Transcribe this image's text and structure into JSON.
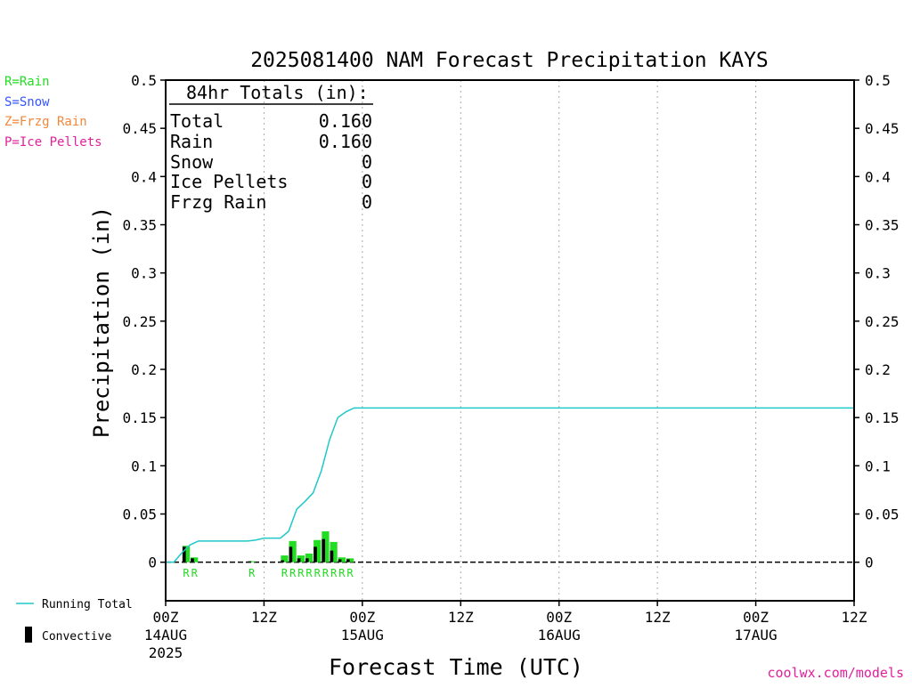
{
  "title": "2025081400 NAM Forecast Precipitation KAYS",
  "legend": [
    {
      "text": "R=Rain",
      "color": "#22dd22"
    },
    {
      "text": "S=Snow",
      "color": "#3355ff"
    },
    {
      "text": "Z=Frzg Rain",
      "color": "#f0883c"
    },
    {
      "text": "P=Ice Pellets",
      "color": "#e0219b"
    }
  ],
  "totals": {
    "header": "84hr Totals (in):",
    "rows": [
      {
        "label": "Total",
        "value": "0.160"
      },
      {
        "label": "Rain",
        "value": "0.160"
      },
      {
        "label": "Snow",
        "value": "0"
      },
      {
        "label": "Ice Pellets",
        "value": "0"
      },
      {
        "label": "Frzg Rain",
        "value": "0"
      }
    ]
  },
  "key": {
    "running_total": "Running Total",
    "convective": "Convective"
  },
  "credit": "coolwx.com/models",
  "colors": {
    "running_total": "#20c8c8",
    "precip_bar": "#22dd22",
    "convective": "#000000",
    "type_code": "#22dd22",
    "credit": "#e0219b"
  },
  "chart_data": {
    "type": "bar",
    "ylabel": "Precipitation (in)",
    "xlabel": "Forecast Time (UTC)",
    "ylim": [
      -0.04,
      0.5
    ],
    "yticks": [
      0,
      0.05,
      0.1,
      0.15,
      0.2,
      0.25,
      0.3,
      0.35,
      0.4,
      0.45,
      0.5
    ],
    "ytick_labels": [
      "0",
      "0.05",
      "0.1",
      "0.15",
      "0.2",
      "0.25",
      "0.3",
      "0.35",
      "0.4",
      "0.45",
      "0.5"
    ],
    "xlim_hours": [
      0,
      84
    ],
    "xticks": [
      {
        "hour": 0,
        "label": "00Z",
        "sub": "14AUG",
        "sub2": "2025"
      },
      {
        "hour": 12,
        "label": "12Z",
        "sub": "",
        "sub2": ""
      },
      {
        "hour": 24,
        "label": "00Z",
        "sub": "15AUG",
        "sub2": ""
      },
      {
        "hour": 36,
        "label": "12Z",
        "sub": "",
        "sub2": ""
      },
      {
        "hour": 48,
        "label": "00Z",
        "sub": "16AUG",
        "sub2": ""
      },
      {
        "hour": 60,
        "label": "12Z",
        "sub": "",
        "sub2": ""
      },
      {
        "hour": 72,
        "label": "00Z",
        "sub": "17AUG",
        "sub2": ""
      },
      {
        "hour": 84,
        "label": "12Z",
        "sub": "",
        "sub2": ""
      }
    ],
    "grid": "dotted vertical at 12-hour ticks",
    "hourly_precip": [
      {
        "hour": 3,
        "total": 0.017,
        "convective": 0.016,
        "type": "R"
      },
      {
        "hour": 4,
        "total": 0.005,
        "convective": 0.004,
        "type": "R"
      },
      {
        "hour": 11,
        "total": 0.001,
        "convective": 0.001,
        "type": "R"
      },
      {
        "hour": 15,
        "total": 0.007,
        "convective": 0.002,
        "type": "R"
      },
      {
        "hour": 16,
        "total": 0.022,
        "convective": 0.016,
        "type": "R"
      },
      {
        "hour": 17,
        "total": 0.007,
        "convective": 0.004,
        "type": "R"
      },
      {
        "hour": 18,
        "total": 0.009,
        "convective": 0.004,
        "type": "R"
      },
      {
        "hour": 19,
        "total": 0.023,
        "convective": 0.016,
        "type": "R"
      },
      {
        "hour": 20,
        "total": 0.032,
        "convective": 0.024,
        "type": "R"
      },
      {
        "hour": 21,
        "total": 0.021,
        "convective": 0.012,
        "type": "R"
      },
      {
        "hour": 22,
        "total": 0.005,
        "convective": 0.003,
        "type": "R"
      },
      {
        "hour": 23,
        "total": 0.004,
        "convective": 0.003,
        "type": "R"
      }
    ],
    "running_total": {
      "name": "Running Total",
      "hours": [
        0,
        1,
        2,
        3,
        4,
        5,
        6,
        7,
        8,
        9,
        10,
        11,
        12,
        13,
        14,
        15,
        16,
        17,
        18,
        19,
        20,
        21,
        22,
        23,
        24,
        84
      ],
      "values": [
        0,
        0,
        0.01,
        0.018,
        0.022,
        0.022,
        0.022,
        0.022,
        0.022,
        0.022,
        0.022,
        0.023,
        0.025,
        0.025,
        0.025,
        0.032,
        0.055,
        0.063,
        0.072,
        0.095,
        0.127,
        0.15,
        0.156,
        0.16,
        0.16,
        0.16
      ]
    }
  }
}
